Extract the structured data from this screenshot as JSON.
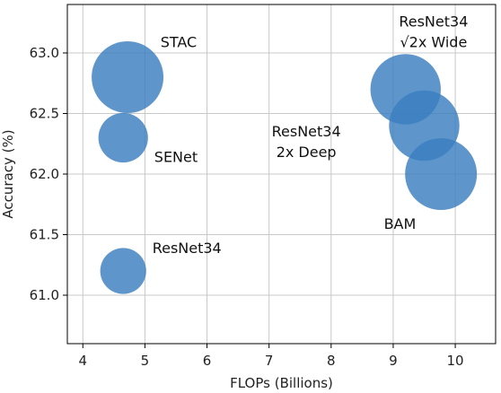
{
  "chart_data": {
    "type": "scatter",
    "xlabel": "FLOPs (Billions)",
    "ylabel": "Accuracy (%)",
    "xlim": [
      3.75,
      10.65
    ],
    "ylim": [
      60.6,
      63.4
    ],
    "xticks": [
      "4",
      "5",
      "6",
      "7",
      "8",
      "9",
      "10"
    ],
    "yticks": [
      "61.0",
      "61.5",
      "62.0",
      "62.5",
      "63.0"
    ],
    "grid": true,
    "bubble_color": "#3b7fc0",
    "points": [
      {
        "x": 4.72,
        "y": 62.8,
        "size": 1.0
      },
      {
        "x": 4.65,
        "y": 62.3,
        "size": 0.69
      },
      {
        "x": 4.65,
        "y": 61.2,
        "size": 0.64
      },
      {
        "x": 9.2,
        "y": 62.7,
        "size": 0.98
      },
      {
        "x": 9.5,
        "y": 62.4,
        "size": 0.98
      },
      {
        "x": 9.77,
        "y": 62.0,
        "size": 1.0
      }
    ],
    "annotations": [
      {
        "text": "STAC",
        "x": 5.25,
        "y": 63.05
      },
      {
        "text": "SENet",
        "x": 5.15,
        "y": 62.1
      },
      {
        "text": "ResNet34",
        "x": 5.12,
        "y": 61.35
      },
      {
        "text": "BAM",
        "x": 8.85,
        "y": 61.55
      },
      {
        "text": "ResNet34",
        "x": 9.65,
        "y": 63.22
      },
      {
        "text": "√2x Wide",
        "x": 9.65,
        "y": 63.05
      },
      {
        "text": "ResNet34",
        "x": 7.6,
        "y": 62.31
      },
      {
        "text": "2x Deep",
        "x": 7.6,
        "y": 62.14
      }
    ]
  }
}
